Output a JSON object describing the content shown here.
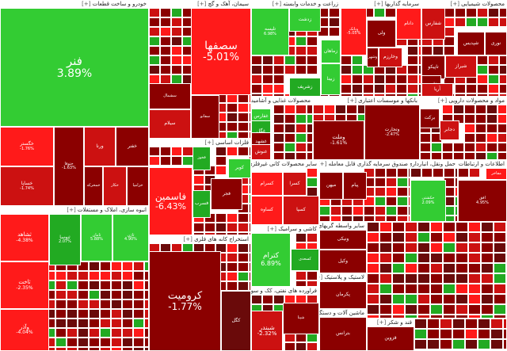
{
  "colors": {
    "strong_green": "#33cc33",
    "green": "#22aa22",
    "bright_red": "#ff1a1a",
    "red": "#cc1111",
    "dark_red": "#8b0000",
    "darker_red": "#6a0a0a",
    "dark_green": "#116611"
  },
  "sectors": [
    {
      "id": "auto",
      "title": "خودرو و ساخت قطعات",
      "expand": "[+]",
      "tiles": [
        {
          "sym": "فنر",
          "pct": "3.89%"
        },
        {
          "sym": "خگستر",
          "pct": "-1.76%"
        },
        {
          "sym": "خساپا",
          "pct": "-1.74%"
        },
        {
          "sym": "ختوقا",
          "pct": "-1.63%"
        },
        {
          "sym": "ورنا",
          "pct": ""
        },
        {
          "sym": "خفنر",
          "pct": ""
        },
        {
          "sym": "خمحرکه",
          "pct": ""
        },
        {
          "sym": "خکار",
          "pct": ""
        },
        {
          "sym": "خزامیا",
          "pct": ""
        }
      ]
    },
    {
      "id": "cement",
      "title": "سیمان، آهک و گچ",
      "expand": "[+]",
      "tiles": [
        {
          "sym": "سصفها",
          "pct": "-5.01%"
        },
        {
          "sym": "سیلام",
          "pct": ""
        },
        {
          "sym": "سشمال",
          "pct": ""
        },
        {
          "sym": "سفانو",
          "pct": ""
        }
      ]
    },
    {
      "id": "agri",
      "title": "زراعت و خدمات وابسته",
      "expand": "[+]",
      "tiles": [
        {
          "sym": "تلیسه",
          "pct": "6.98%"
        },
        {
          "sym": "زشریف",
          "pct": ""
        },
        {
          "sym": "زماهان",
          "pct": ""
        },
        {
          "sym": "زبینا",
          "pct": ""
        },
        {
          "sym": "زدشت",
          "pct": ""
        }
      ]
    },
    {
      "id": "invest",
      "title": "سرمایه گذاریها",
      "expand": "[+]",
      "tiles": [
        {
          "sym": "وبانک",
          "pct": "-5.05%"
        },
        {
          "sym": "دانام",
          "pct": ""
        },
        {
          "sym": "ولی",
          "pct": ""
        },
        {
          "sym": "وخارزم",
          "pct": ""
        },
        {
          "sym": "وشهر",
          "pct": ""
        }
      ]
    },
    {
      "id": "oil",
      "title": "محصولات شیمیایی",
      "expand": "[+]",
      "tiles": [
        {
          "sym": "شفارس",
          "pct": ""
        },
        {
          "sym": "شیراز",
          "pct": ""
        },
        {
          "sym": "تاپیکو",
          "pct": ""
        },
        {
          "sym": "شپدیس",
          "pct": ""
        },
        {
          "sym": "فارس",
          "pct": ""
        },
        {
          "sym": "آریا",
          "pct": ""
        },
        {
          "sym": "نوری",
          "pct": ""
        }
      ]
    },
    {
      "id": "metal",
      "title": "فلزات اساسی",
      "expand": "[+]",
      "tiles": [
        {
          "sym": "فاسمین",
          "pct": "-6.43%"
        },
        {
          "sym": "فجر",
          "pct": ""
        },
        {
          "sym": "فسرب",
          "pct": ""
        },
        {
          "sym": "کویر",
          "pct": ""
        },
        {
          "sym": "فخوز",
          "pct": ""
        }
      ]
    },
    {
      "id": "food",
      "title": "محصولات غذایی و آشامیدنی به جز قند و شکر",
      "expand": "[+]",
      "tiles": [
        {
          "sym": "غفارس",
          "pct": ""
        },
        {
          "sym": "غگل",
          "pct": ""
        },
        {
          "sym": "غشهد",
          "pct": ""
        },
        {
          "sym": "غنوش",
          "pct": ""
        }
      ]
    },
    {
      "id": "bank",
      "title": "بانکها و موسسات اعتباری",
      "expand": "[+]",
      "tiles": [
        {
          "sym": "وملت",
          "pct": "-1.61%"
        },
        {
          "sym": "وتجارت",
          "pct": "-2.47%"
        }
      ]
    },
    {
      "id": "pharma",
      "title": "مواد و محصولات دارویی",
      "expand": "[+]",
      "tiles": [
        {
          "sym": "برکت",
          "pct": ""
        },
        {
          "sym": "دجابر",
          "pct": ""
        }
      ]
    },
    {
      "id": "zinc",
      "title": "استخراج کانه های فلزی",
      "expand": "[+]",
      "tiles": [
        {
          "sym": "کرومیت",
          "pct": "-1.77%"
        },
        {
          "sym": "کگل",
          "pct": ""
        }
      ]
    },
    {
      "id": "nonmetal",
      "title": "سایر محصولات کانی غیرفلزی",
      "expand": "[+]",
      "tiles": [
        {
          "sym": "کسرام",
          "pct": ""
        },
        {
          "sym": "کساوه",
          "pct": ""
        },
        {
          "sym": "کسرا",
          "pct": ""
        },
        {
          "sym": "کسپا",
          "pct": ""
        }
      ]
    },
    {
      "id": "bigfund",
      "title": "صندوق سرمایه گذاری قابل معامله",
      "expand": "[+]",
      "tiles": [
        {
          "sym": "میهن",
          "pct": ""
        },
        {
          "sym": "پیام",
          "pct": ""
        }
      ]
    },
    {
      "id": "commerce",
      "title": "حمل ونقل، انبارداری و ارتباطات",
      "expand": "[+]",
      "tiles": [
        {
          "sym": "حکشتی",
          "pct": "2.09%"
        }
      ]
    },
    {
      "id": "info",
      "title": "اطلاعات و ارتباطات",
      "expand": "[+]",
      "tiles": [
        {
          "sym": "افق",
          "pct": "4.95%"
        },
        {
          "sym": "مفاخر",
          "pct": ""
        }
      ]
    },
    {
      "id": "tile",
      "title": "کاشی و سرامیک",
      "expand": "[+]",
      "tiles": [
        {
          "sym": "کترام",
          "pct": "6.89%"
        },
        {
          "sym": "کسعدی",
          "pct": ""
        }
      ]
    },
    {
      "id": "build",
      "title": "انبوه سازی، املاک و مستغلات",
      "expand": "[+]",
      "tiles": [
        {
          "sym": "ثشاهد",
          "pct": "-4.38%"
        },
        {
          "sym": "ثاخت",
          "pct": "-2.35%"
        },
        {
          "sym": "وآذر",
          "pct": "-4.04%"
        },
        {
          "sym": "ثنوسا",
          "pct": "2.07%"
        },
        {
          "sym": "ثامان",
          "pct": "5.88%"
        },
        {
          "sym": "ثاژن",
          "pct": "4.90%"
        }
      ]
    },
    {
      "id": "oilprod",
      "title": "فراورده های نفتی، کک و سوخت هسته ای",
      "expand": "[+]",
      "tiles": [
        {
          "sym": "شبندر",
          "pct": "-2.32%"
        },
        {
          "sym": "شپنا",
          "pct": ""
        }
      ]
    },
    {
      "id": "other_fin",
      "title": "سایر واسطه گریهای مالی",
      "expand": "[+]",
      "tiles": [
        {
          "sym": "ونیکی",
          "pct": ""
        },
        {
          "sym": "وکیل",
          "pct": ""
        }
      ]
    },
    {
      "id": "rubber",
      "title": "لاستیک و پلاستیک",
      "expand": "[+]",
      "tiles": [
        {
          "sym": "پکرمان",
          "pct": ""
        }
      ]
    },
    {
      "id": "elec",
      "title": "ماشین آلات و دستگاه های برقی",
      "expand": "[+]",
      "tiles": [
        {
          "sym": "بترانس",
          "pct": ""
        }
      ]
    },
    {
      "id": "sugar",
      "title": "قند و شکر",
      "expand": "[+]",
      "tiles": [
        {
          "sym": "قزوین",
          "pct": ""
        }
      ]
    }
  ]
}
